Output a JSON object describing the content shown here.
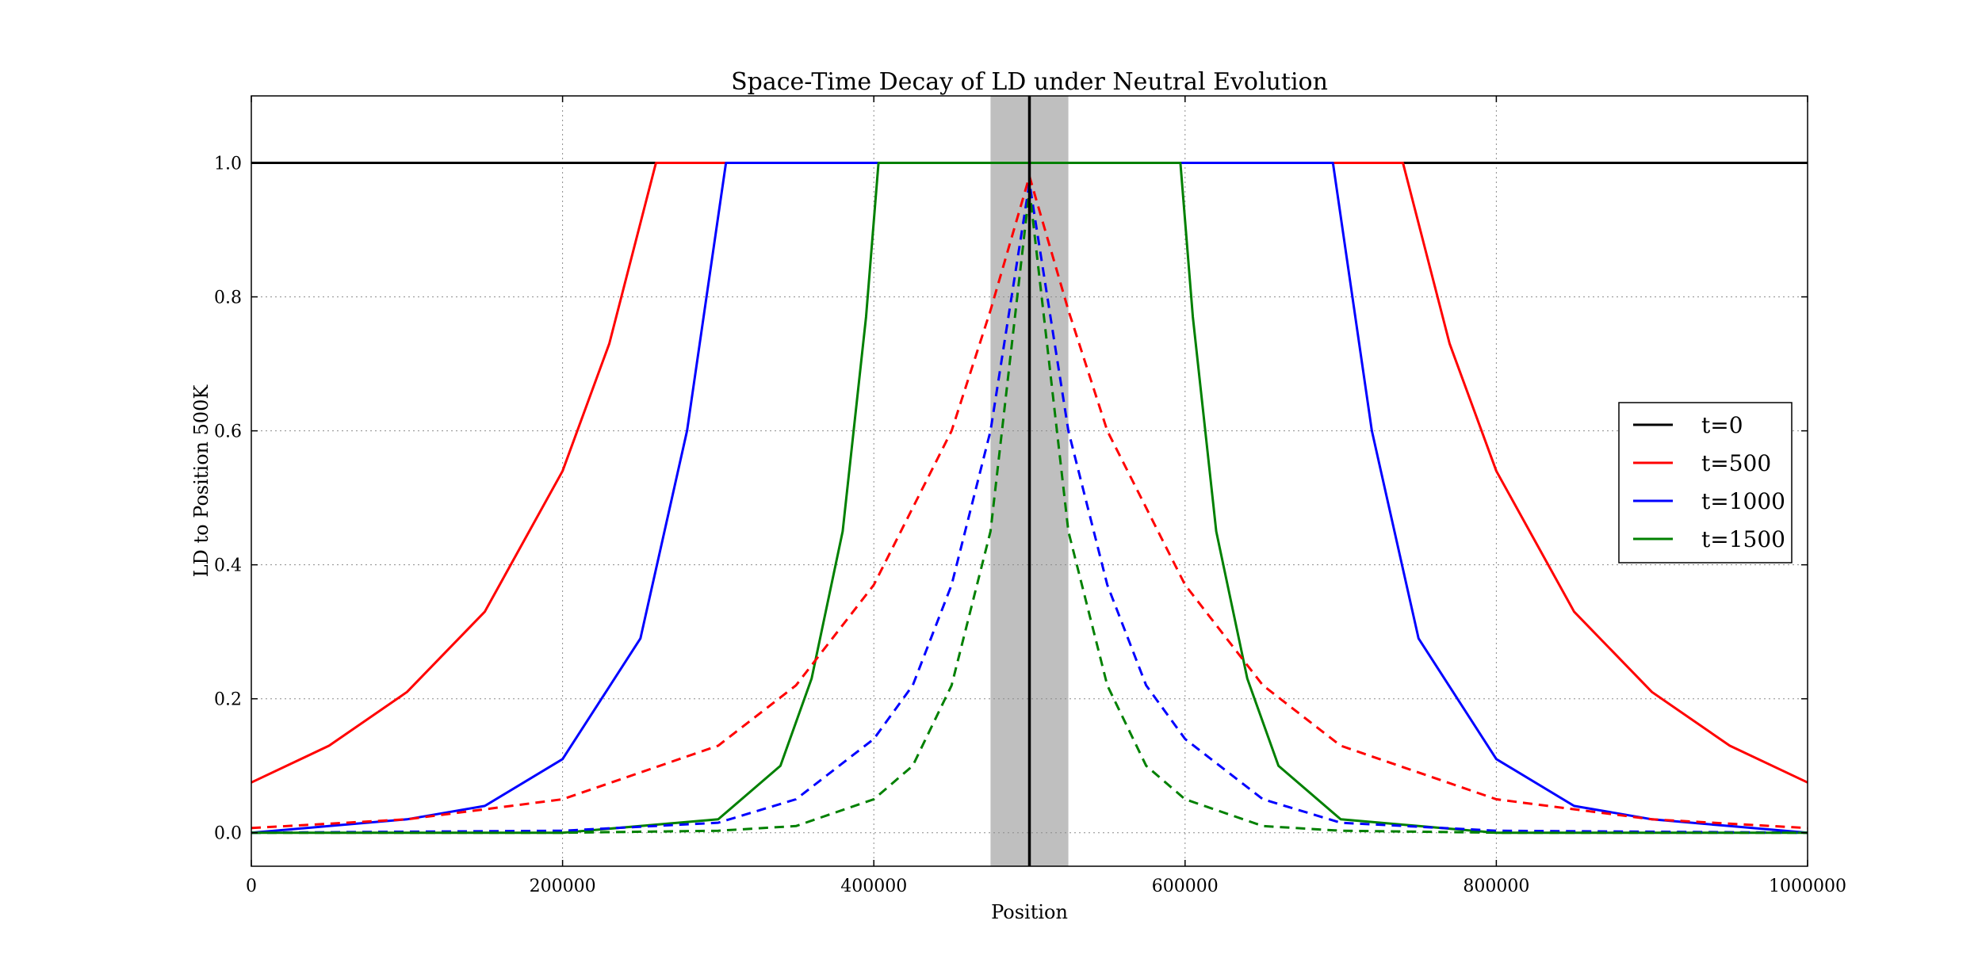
{
  "chart_data": {
    "type": "line",
    "title": "Space-Time Decay of LD under Neutral Evolution",
    "xlabel": "Position",
    "ylabel": "LD to Position 500K",
    "xlim": [
      0,
      1000000
    ],
    "ylim": [
      -0.05,
      1.1
    ],
    "xticks": [
      0,
      200000,
      400000,
      600000,
      800000,
      1000000
    ],
    "xtick_labels": [
      "0",
      "200000",
      "400000",
      "600000",
      "800000",
      "1000000"
    ],
    "yticks": [
      0.0,
      0.2,
      0.4,
      0.6,
      0.8,
      1.0
    ],
    "ytick_labels": [
      "0.0",
      "0.2",
      "0.4",
      "0.6",
      "0.8",
      "1.0"
    ],
    "grid": true,
    "legend_position": "right",
    "shaded_region": {
      "x": [
        475000,
        525000
      ],
      "color": "#bfbfbf"
    },
    "vertical_line": {
      "x": 500000,
      "color": "#000000"
    },
    "series": [
      {
        "name": "t=0",
        "color": "#000000",
        "style": "solid",
        "x": [
          0,
          1000000
        ],
        "y": [
          1.0,
          1.0
        ]
      },
      {
        "name": "t=500",
        "color": "#ff0000",
        "style": "solid",
        "x": [
          0,
          50000,
          100000,
          150000,
          200000,
          230000,
          260000,
          740000,
          770000,
          800000,
          850000,
          900000,
          950000,
          1000000
        ],
        "y": [
          0.075,
          0.13,
          0.21,
          0.33,
          0.54,
          0.73,
          1.0,
          1.0,
          0.73,
          0.54,
          0.33,
          0.21,
          0.13,
          0.075
        ]
      },
      {
        "name": "t=1000",
        "color": "#0000ff",
        "style": "solid",
        "x": [
          0,
          50000,
          100000,
          150000,
          200000,
          250000,
          280000,
          305000,
          695000,
          720000,
          750000,
          800000,
          850000,
          900000,
          950000,
          1000000
        ],
        "y": [
          0.0,
          0.01,
          0.02,
          0.04,
          0.11,
          0.29,
          0.6,
          1.0,
          1.0,
          0.6,
          0.29,
          0.11,
          0.04,
          0.02,
          0.01,
          0.0
        ]
      },
      {
        "name": "t=1500",
        "color": "#008000",
        "style": "solid",
        "x": [
          0,
          100000,
          200000,
          300000,
          340000,
          360000,
          380000,
          395000,
          403000,
          597000,
          605000,
          620000,
          640000,
          660000,
          700000,
          800000,
          900000,
          1000000
        ],
        "y": [
          0.0,
          0.0,
          0.0,
          0.02,
          0.1,
          0.23,
          0.45,
          0.77,
          1.0,
          1.0,
          0.77,
          0.45,
          0.23,
          0.1,
          0.02,
          0.0,
          0.0,
          0.0
        ]
      },
      {
        "name": "",
        "color": "#ff0000",
        "style": "dashed",
        "x": [
          0,
          100000,
          200000,
          300000,
          350000,
          400000,
          450000,
          475000,
          500000,
          525000,
          550000,
          600000,
          650000,
          700000,
          800000,
          900000,
          1000000
        ],
        "y": [
          0.007,
          0.02,
          0.05,
          0.13,
          0.22,
          0.37,
          0.6,
          0.78,
          0.98,
          0.78,
          0.6,
          0.37,
          0.22,
          0.13,
          0.05,
          0.02,
          0.007
        ]
      },
      {
        "name": "",
        "color": "#0000ff",
        "style": "dashed",
        "x": [
          0,
          200000,
          300000,
          350000,
          400000,
          425000,
          450000,
          475000,
          500000,
          525000,
          550000,
          575000,
          600000,
          650000,
          700000,
          800000,
          1000000
        ],
        "y": [
          0.0,
          0.003,
          0.015,
          0.05,
          0.14,
          0.22,
          0.37,
          0.6,
          0.97,
          0.6,
          0.37,
          0.22,
          0.14,
          0.05,
          0.015,
          0.003,
          0.0
        ]
      },
      {
        "name": "",
        "color": "#008000",
        "style": "dashed",
        "x": [
          0,
          200000,
          300000,
          350000,
          400000,
          425000,
          450000,
          475000,
          500000,
          525000,
          550000,
          575000,
          600000,
          650000,
          700000,
          800000,
          1000000
        ],
        "y": [
          0.0,
          0.0,
          0.003,
          0.01,
          0.05,
          0.1,
          0.22,
          0.45,
          0.96,
          0.45,
          0.22,
          0.1,
          0.05,
          0.01,
          0.003,
          0.0,
          0.0
        ]
      }
    ]
  }
}
